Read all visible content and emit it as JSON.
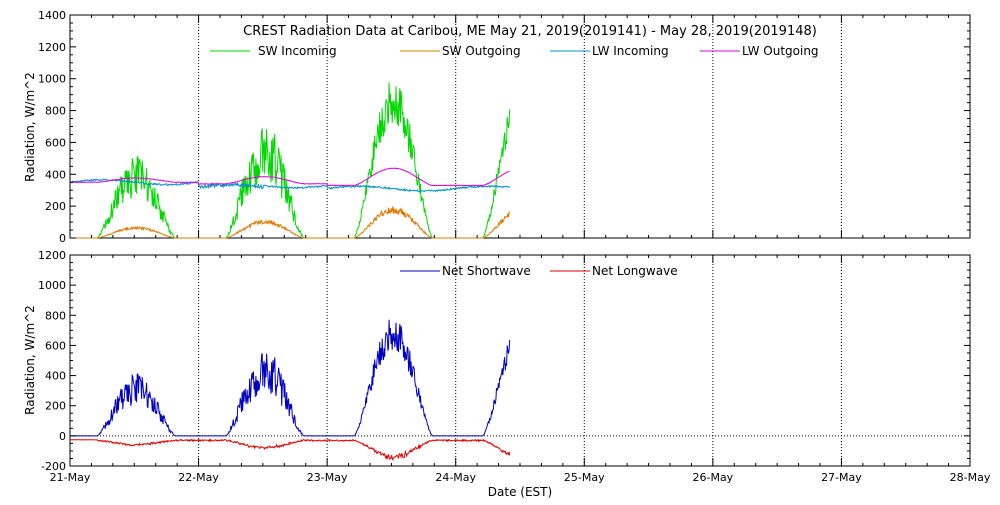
{
  "chart_data": [
    {
      "type": "line",
      "title": "CREST Radiation Data at Caribou, ME   May 21, 2019(2019141) - May 28, 2019(2019148)",
      "xlabel": "",
      "ylabel": "Radiation, W/m^2",
      "ylim": [
        0,
        1400
      ],
      "yticks": [
        "0",
        "200",
        "400",
        "600",
        "800",
        "1000",
        "1200",
        "1400"
      ],
      "xlim": [
        0,
        7
      ],
      "grid": true,
      "legend": "top",
      "series": [
        {
          "name": "SW Incoming",
          "color": "#00d800",
          "key": "sw_in"
        },
        {
          "name": "SW Outgoing",
          "color": "#e07800",
          "key": "sw_out"
        },
        {
          "name": "LW Incoming",
          "color": "#0090c8",
          "key": "lw_in"
        },
        {
          "name": "LW Outgoing",
          "color": "#e000e0",
          "key": "lw_out"
        }
      ],
      "daily_peaks": {
        "sw_in": [
          460,
          640,
          950
        ],
        "sw_out": [
          70,
          110,
          190
        ],
        "lw_in": [
          355,
          330,
          365
        ],
        "lw_out": [
          360,
          380,
          450
        ]
      }
    },
    {
      "type": "line",
      "title": "",
      "xlabel": "Date (EST)",
      "ylabel": "Radiation, W/m^2",
      "ylim": [
        -200,
        1200
      ],
      "yticks": [
        "-200",
        "0",
        "200",
        "400",
        "600",
        "800",
        "1000",
        "1200"
      ],
      "xlim": [
        0,
        7
      ],
      "xticks": [
        "21-May",
        "22-May",
        "23-May",
        "24-May",
        "25-May",
        "26-May",
        "27-May",
        "28-May"
      ],
      "grid": true,
      "legend": "top",
      "series": [
        {
          "name": "Net Shortwave",
          "color": "#0000c0",
          "key": "net_sw"
        },
        {
          "name": "Net Longwave",
          "color": "#e00000",
          "key": "net_lw"
        }
      ],
      "daily_peaks": {
        "net_sw": [
          370,
          510,
          750
        ],
        "net_lw": [
          -40,
          -60,
          -125
        ]
      }
    }
  ]
}
